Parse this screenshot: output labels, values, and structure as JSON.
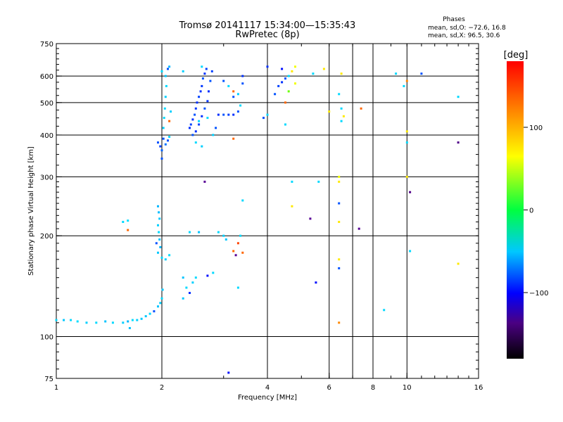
{
  "title": {
    "line1": "Tromsø 20141117 15:34:00—15:35:43",
    "line2": "RwPretec (8p)"
  },
  "stats": {
    "heading": "Phases",
    "line1": "mean, sd,O: −72.6, 16.8",
    "line2": "mean, sd,X:  96.5, 30.6"
  },
  "colorbar": {
    "unit": "[deg]",
    "ticks": [
      {
        "value": 100,
        "label": "100"
      },
      {
        "value": 0,
        "label": "0"
      },
      {
        "value": -100,
        "label": "−100"
      }
    ],
    "range": [
      -180,
      180
    ]
  },
  "chart_data": {
    "type": "scatter",
    "xlabel": "Frequency [MHz]",
    "ylabel": "Stationary phase Virtual Height [km]",
    "x_scale": "log",
    "y_scale": "log",
    "xlim": [
      1,
      16
    ],
    "ylim": [
      75,
      750
    ],
    "x_ticks": [
      {
        "value": 1,
        "label": "1"
      },
      {
        "value": 2,
        "label": "2"
      },
      {
        "value": 4,
        "label": "4"
      },
      {
        "value": 6,
        "label": "6"
      },
      {
        "value": 8,
        "label": "8"
      },
      {
        "value": 10,
        "label": "10"
      },
      {
        "value": 16,
        "label": "16"
      }
    ],
    "x_grid": [
      2,
      4,
      6,
      7,
      8,
      10
    ],
    "y_ticks": [
      {
        "value": 75,
        "label": "75"
      },
      {
        "value": 100,
        "label": "100"
      },
      {
        "value": 200,
        "label": "200"
      },
      {
        "value": 300,
        "label": "300"
      },
      {
        "value": 400,
        "label": "400"
      },
      {
        "value": 500,
        "label": "500"
      },
      {
        "value": 600,
        "label": "600"
      },
      {
        "value": 750,
        "label": "750"
      }
    ],
    "y_grid": [
      100,
      200,
      300,
      400,
      500,
      600
    ],
    "color_by": "phase_deg",
    "points": [
      {
        "f": 1.0,
        "h": 112,
        "p": -60
      },
      {
        "f": 1.05,
        "h": 112,
        "p": -65
      },
      {
        "f": 1.1,
        "h": 112,
        "p": -60
      },
      {
        "f": 1.15,
        "h": 111,
        "p": -58
      },
      {
        "f": 1.22,
        "h": 110,
        "p": -62
      },
      {
        "f": 1.3,
        "h": 110,
        "p": -60
      },
      {
        "f": 1.38,
        "h": 111,
        "p": -66
      },
      {
        "f": 1.45,
        "h": 110,
        "p": -60
      },
      {
        "f": 1.55,
        "h": 110,
        "p": -62
      },
      {
        "f": 1.6,
        "h": 111,
        "p": -70
      },
      {
        "f": 1.65,
        "h": 112,
        "p": -58
      },
      {
        "f": 1.7,
        "h": 112,
        "p": -62
      },
      {
        "f": 1.75,
        "h": 113,
        "p": -65
      },
      {
        "f": 1.8,
        "h": 115,
        "p": -64
      },
      {
        "f": 1.85,
        "h": 117,
        "p": -60
      },
      {
        "f": 1.9,
        "h": 119,
        "p": -100
      },
      {
        "f": 1.95,
        "h": 123,
        "p": -66
      },
      {
        "f": 1.98,
        "h": 126,
        "p": -62
      },
      {
        "f": 2.0,
        "h": 130,
        "p": -60
      },
      {
        "f": 2.01,
        "h": 138,
        "p": -64
      },
      {
        "f": 1.62,
        "h": 106,
        "p": -66
      },
      {
        "f": 1.55,
        "h": 220,
        "p": -60
      },
      {
        "f": 1.6,
        "h": 208,
        "p": 150
      },
      {
        "f": 1.6,
        "h": 222,
        "p": -58
      },
      {
        "f": 1.95,
        "h": 245,
        "p": -70
      },
      {
        "f": 1.96,
        "h": 235,
        "p": -68
      },
      {
        "f": 1.97,
        "h": 225,
        "p": -65
      },
      {
        "f": 1.95,
        "h": 215,
        "p": -62
      },
      {
        "f": 1.96,
        "h": 205,
        "p": -60
      },
      {
        "f": 1.97,
        "h": 195,
        "p": -66
      },
      {
        "f": 1.98,
        "h": 185,
        "p": -70
      },
      {
        "f": 1.95,
        "h": 178,
        "p": -64
      },
      {
        "f": 2.0,
        "h": 172,
        "p": -60
      },
      {
        "f": 2.05,
        "h": 170,
        "p": -62
      },
      {
        "f": 2.1,
        "h": 175,
        "p": -58
      },
      {
        "f": 1.93,
        "h": 190,
        "p": -100
      },
      {
        "f": 2.3,
        "h": 150,
        "p": -66
      },
      {
        "f": 2.35,
        "h": 140,
        "p": -60
      },
      {
        "f": 2.3,
        "h": 130,
        "p": -64
      },
      {
        "f": 2.4,
        "h": 135,
        "p": -110
      },
      {
        "f": 2.45,
        "h": 145,
        "p": -62
      },
      {
        "f": 2.5,
        "h": 150,
        "p": -60
      },
      {
        "f": 2.55,
        "h": 205,
        "p": -66
      },
      {
        "f": 2.4,
        "h": 205,
        "p": -60
      },
      {
        "f": 2.7,
        "h": 152,
        "p": -120
      },
      {
        "f": 2.8,
        "h": 155,
        "p": -60
      },
      {
        "f": 2.65,
        "h": 290,
        "p": -140
      },
      {
        "f": 2.9,
        "h": 205,
        "p": -60
      },
      {
        "f": 3.0,
        "h": 200,
        "p": -62
      },
      {
        "f": 3.05,
        "h": 195,
        "p": -64
      },
      {
        "f": 3.2,
        "h": 180,
        "p": 150
      },
      {
        "f": 3.25,
        "h": 175,
        "p": -140
      },
      {
        "f": 3.3,
        "h": 190,
        "p": 160
      },
      {
        "f": 3.35,
        "h": 200,
        "p": -60
      },
      {
        "f": 3.4,
        "h": 178,
        "p": 150
      },
      {
        "f": 3.4,
        "h": 255,
        "p": -60
      },
      {
        "f": 3.3,
        "h": 140,
        "p": -60
      },
      {
        "f": 3.1,
        "h": 78,
        "p": -120
      },
      {
        "f": 1.95,
        "h": 380,
        "p": -100
      },
      {
        "f": 1.98,
        "h": 370,
        "p": -105
      },
      {
        "f": 2.0,
        "h": 360,
        "p": -95
      },
      {
        "f": 2.02,
        "h": 390,
        "p": -100
      },
      {
        "f": 2.05,
        "h": 375,
        "p": -90
      },
      {
        "f": 2.08,
        "h": 385,
        "p": -100
      },
      {
        "f": 2.1,
        "h": 395,
        "p": -60
      },
      {
        "f": 2.0,
        "h": 340,
        "p": -100
      },
      {
        "f": 2.02,
        "h": 420,
        "p": -62
      },
      {
        "f": 2.03,
        "h": 450,
        "p": -60
      },
      {
        "f": 2.04,
        "h": 480,
        "p": -60
      },
      {
        "f": 2.05,
        "h": 520,
        "p": -62
      },
      {
        "f": 2.06,
        "h": 560,
        "p": -60
      },
      {
        "f": 2.05,
        "h": 600,
        "p": -65
      },
      {
        "f": 2.08,
        "h": 630,
        "p": -100
      },
      {
        "f": 2.1,
        "h": 640,
        "p": -70
      },
      {
        "f": 2.0,
        "h": 620,
        "p": -60
      },
      {
        "f": 2.12,
        "h": 470,
        "p": -62
      },
      {
        "f": 2.1,
        "h": 440,
        "p": 150
      },
      {
        "f": 2.4,
        "h": 420,
        "p": -110
      },
      {
        "f": 2.42,
        "h": 430,
        "p": -105
      },
      {
        "f": 2.45,
        "h": 445,
        "p": -110
      },
      {
        "f": 2.48,
        "h": 460,
        "p": -100
      },
      {
        "f": 2.5,
        "h": 480,
        "p": -108
      },
      {
        "f": 2.52,
        "h": 500,
        "p": -110
      },
      {
        "f": 2.55,
        "h": 520,
        "p": -105
      },
      {
        "f": 2.58,
        "h": 540,
        "p": -110
      },
      {
        "f": 2.6,
        "h": 560,
        "p": -108
      },
      {
        "f": 2.62,
        "h": 590,
        "p": -100
      },
      {
        "f": 2.65,
        "h": 610,
        "p": -110
      },
      {
        "f": 2.68,
        "h": 630,
        "p": -105
      },
      {
        "f": 2.45,
        "h": 400,
        "p": -100
      },
      {
        "f": 2.5,
        "h": 410,
        "p": -110
      },
      {
        "f": 2.55,
        "h": 430,
        "p": -105
      },
      {
        "f": 2.6,
        "h": 455,
        "p": -110
      },
      {
        "f": 2.65,
        "h": 480,
        "p": -100
      },
      {
        "f": 2.7,
        "h": 505,
        "p": -108
      },
      {
        "f": 2.72,
        "h": 540,
        "p": -110
      },
      {
        "f": 2.75,
        "h": 580,
        "p": -100
      },
      {
        "f": 2.78,
        "h": 620,
        "p": -105
      },
      {
        "f": 2.5,
        "h": 380,
        "p": -60
      },
      {
        "f": 2.6,
        "h": 370,
        "p": -62
      },
      {
        "f": 2.55,
        "h": 440,
        "p": -60
      },
      {
        "f": 2.7,
        "h": 450,
        "p": -60
      },
      {
        "f": 2.8,
        "h": 400,
        "p": -62
      },
      {
        "f": 2.85,
        "h": 420,
        "p": -100
      },
      {
        "f": 2.9,
        "h": 460,
        "p": -110
      },
      {
        "f": 3.0,
        "h": 460,
        "p": -100
      },
      {
        "f": 3.1,
        "h": 460,
        "p": -105
      },
      {
        "f": 3.2,
        "h": 460,
        "p": -110
      },
      {
        "f": 3.3,
        "h": 470,
        "p": -100
      },
      {
        "f": 3.2,
        "h": 520,
        "p": -100
      },
      {
        "f": 3.3,
        "h": 530,
        "p": -62
      },
      {
        "f": 3.4,
        "h": 570,
        "p": -100
      },
      {
        "f": 3.4,
        "h": 600,
        "p": -110
      },
      {
        "f": 3.35,
        "h": 490,
        "p": -60
      },
      {
        "f": 3.2,
        "h": 540,
        "p": 150
      },
      {
        "f": 3.1,
        "h": 560,
        "p": -60
      },
      {
        "f": 3.0,
        "h": 580,
        "p": -100
      },
      {
        "f": 2.6,
        "h": 640,
        "p": -60
      },
      {
        "f": 2.3,
        "h": 620,
        "p": -62
      },
      {
        "f": 3.2,
        "h": 390,
        "p": 150
      },
      {
        "f": 3.9,
        "h": 450,
        "p": -100
      },
      {
        "f": 4.0,
        "h": 460,
        "p": -60
      },
      {
        "f": 4.0,
        "h": 640,
        "p": -110
      },
      {
        "f": 4.2,
        "h": 530,
        "p": -100
      },
      {
        "f": 4.3,
        "h": 560,
        "p": -105
      },
      {
        "f": 4.4,
        "h": 575,
        "p": -110
      },
      {
        "f": 4.5,
        "h": 590,
        "p": -100
      },
      {
        "f": 4.6,
        "h": 600,
        "p": -60
      },
      {
        "f": 4.7,
        "h": 620,
        "p": 110
      },
      {
        "f": 4.8,
        "h": 640,
        "p": 100
      },
      {
        "f": 4.6,
        "h": 540,
        "p": 60
      },
      {
        "f": 4.8,
        "h": 570,
        "p": 100
      },
      {
        "f": 4.5,
        "h": 500,
        "p": 150
      },
      {
        "f": 4.5,
        "h": 430,
        "p": -60
      },
      {
        "f": 4.7,
        "h": 290,
        "p": -60
      },
      {
        "f": 4.7,
        "h": 245,
        "p": 110
      },
      {
        "f": 4.4,
        "h": 630,
        "p": -120
      },
      {
        "f": 5.4,
        "h": 610,
        "p": -60
      },
      {
        "f": 5.6,
        "h": 290,
        "p": -60
      },
      {
        "f": 5.3,
        "h": 225,
        "p": -140
      },
      {
        "f": 5.5,
        "h": 145,
        "p": -120
      },
      {
        "f": 5.8,
        "h": 630,
        "p": 110
      },
      {
        "f": 6.0,
        "h": 470,
        "p": 110
      },
      {
        "f": 6.4,
        "h": 300,
        "p": 100
      },
      {
        "f": 6.4,
        "h": 290,
        "p": 110
      },
      {
        "f": 6.4,
        "h": 250,
        "p": -100
      },
      {
        "f": 6.4,
        "h": 220,
        "p": 110
      },
      {
        "f": 6.4,
        "h": 170,
        "p": 110
      },
      {
        "f": 6.4,
        "h": 160,
        "p": -100
      },
      {
        "f": 6.4,
        "h": 110,
        "p": 140
      },
      {
        "f": 6.4,
        "h": 530,
        "p": -60
      },
      {
        "f": 6.5,
        "h": 480,
        "p": -60
      },
      {
        "f": 6.5,
        "h": 440,
        "p": -60
      },
      {
        "f": 6.5,
        "h": 610,
        "p": 110
      },
      {
        "f": 6.6,
        "h": 455,
        "p": 110
      },
      {
        "f": 7.3,
        "h": 210,
        "p": -140
      },
      {
        "f": 7.4,
        "h": 480,
        "p": 150
      },
      {
        "f": 8.6,
        "h": 120,
        "p": -60
      },
      {
        "f": 9.3,
        "h": 610,
        "p": -60
      },
      {
        "f": 9.8,
        "h": 560,
        "p": -60
      },
      {
        "f": 10.0,
        "h": 580,
        "p": 140
      },
      {
        "f": 10.0,
        "h": 410,
        "p": 110
      },
      {
        "f": 10.0,
        "h": 380,
        "p": -60
      },
      {
        "f": 10.2,
        "h": 270,
        "p": -150
      },
      {
        "f": 10.2,
        "h": 180,
        "p": -60
      },
      {
        "f": 10.0,
        "h": 300,
        "p": 110
      },
      {
        "f": 11.0,
        "h": 610,
        "p": -100
      },
      {
        "f": 14.0,
        "h": 520,
        "p": -60
      },
      {
        "f": 14.0,
        "h": 380,
        "p": -150
      },
      {
        "f": 14.0,
        "h": 165,
        "p": 110
      }
    ]
  }
}
